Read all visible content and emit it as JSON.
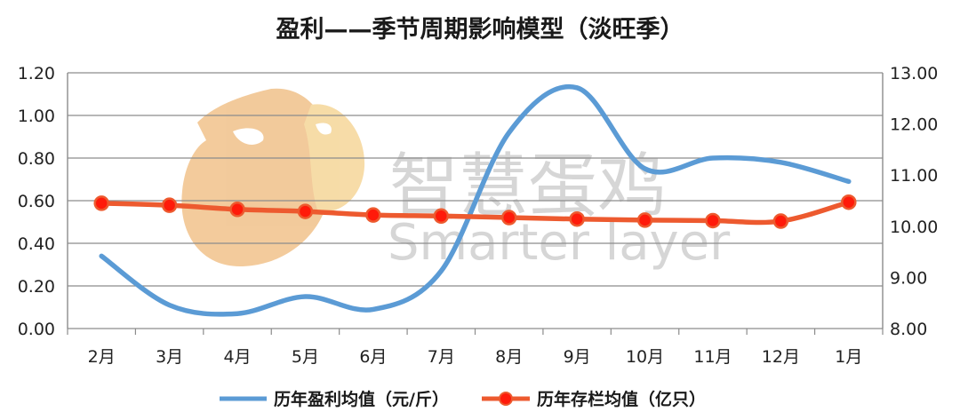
{
  "chart_data": {
    "type": "line",
    "title": "盈利——季节周期影响模型（淡旺季）",
    "categories": [
      "2月",
      "3月",
      "4月",
      "5月",
      "6月",
      "7月",
      "8月",
      "9月",
      "10月",
      "11月",
      "12月",
      "1月"
    ],
    "y_left": {
      "ticks": [
        "0.00",
        "0.20",
        "0.40",
        "0.60",
        "0.80",
        "1.00",
        "1.20"
      ],
      "ylim": [
        0,
        1.2
      ]
    },
    "y_right": {
      "ticks": [
        "8.00",
        "9.00",
        "10.00",
        "11.00",
        "12.00",
        "13.00"
      ],
      "ylim": [
        8,
        13
      ]
    },
    "grid": true,
    "legend_position": "bottom",
    "series": [
      {
        "name": "历年盈利均值（元/斤）",
        "axis": "left",
        "color": "#5b9bd5",
        "values": [
          0.34,
          0.11,
          0.07,
          0.15,
          0.09,
          0.27,
          0.92,
          1.13,
          0.75,
          0.8,
          0.78,
          0.69
        ]
      },
      {
        "name": "历年存栏均值（亿只）",
        "axis": "right",
        "color": "#ed5a2f",
        "marker_color": "#ff1a0a",
        "values": [
          10.45,
          10.41,
          10.33,
          10.29,
          10.22,
          10.2,
          10.17,
          10.14,
          10.12,
          10.11,
          10.1,
          10.47
        ]
      }
    ]
  },
  "watermark": {
    "cn": "智慧蛋鸡",
    "en": "Smarter layer"
  }
}
